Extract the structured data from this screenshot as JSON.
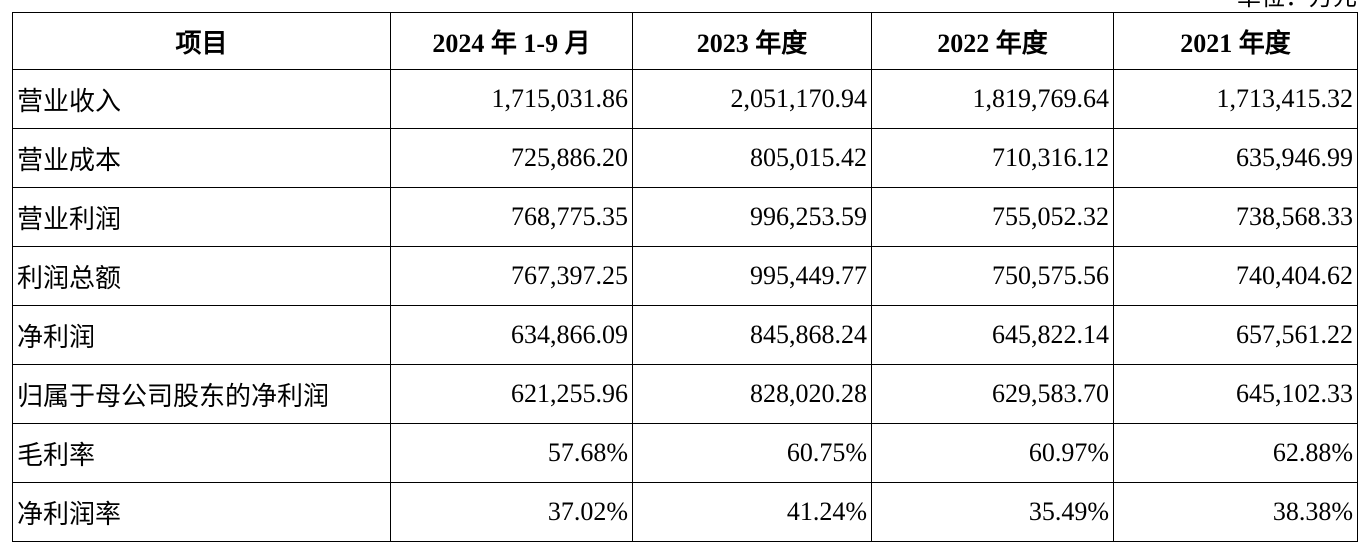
{
  "header": {
    "unit": "单位：万元"
  },
  "table": {
    "columns": [
      "项目",
      "2024 年 1-9 月",
      "2023 年度",
      "2022 年度",
      "2021 年度"
    ],
    "rows": [
      [
        "营业收入",
        "1,715,031.86",
        "2,051,170.94",
        "1,819,769.64",
        "1,713,415.32"
      ],
      [
        "营业成本",
        "725,886.20",
        "805,015.42",
        "710,316.12",
        "635,946.99"
      ],
      [
        "营业利润",
        "768,775.35",
        "996,253.59",
        "755,052.32",
        "738,568.33"
      ],
      [
        "利润总额",
        "767,397.25",
        "995,449.77",
        "750,575.56",
        "740,404.62"
      ],
      [
        "净利润",
        "634,866.09",
        "845,868.24",
        "645,822.14",
        "657,561.22"
      ],
      [
        "归属于母公司股东的净利润",
        "621,255.96",
        "828,020.28",
        "629,583.70",
        "645,102.33"
      ],
      [
        "毛利率",
        "57.68%",
        "60.75%",
        "60.97%",
        "62.88%"
      ],
      [
        "净利润率",
        "37.02%",
        "41.24%",
        "35.49%",
        "38.38%"
      ]
    ]
  }
}
